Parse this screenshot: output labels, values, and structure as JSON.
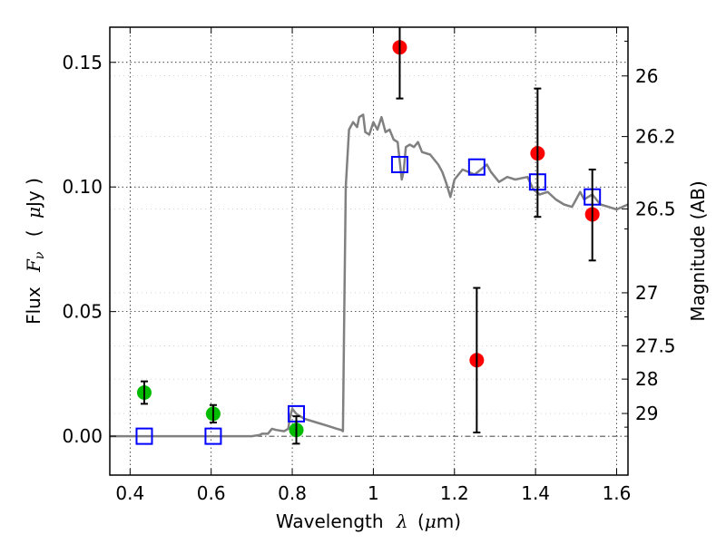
{
  "chart_data": {
    "type": "scatter",
    "title": "",
    "xlabel": "Wavelength",
    "xlabel_symbol": "λ",
    "xlabel_unit_open": "(",
    "xlabel_unit_mu": "μ",
    "xlabel_unit_rest": "m)",
    "ylabel": "Flux",
    "ylabel_symbol": "F",
    "ylabel_subscript": "ν",
    "ylabel_unit_open": "(",
    "ylabel_unit_mu": "μ",
    "ylabel_unit_rest": "Jy )",
    "y2label": "Magnitude (AB)",
    "xlim": [
      0.35,
      1.628
    ],
    "ylim": [
      -0.0156,
      0.1641
    ],
    "grid": true,
    "xticks": [
      0.4,
      0.6,
      0.8,
      1.0,
      1.2,
      1.4,
      1.6
    ],
    "xtick_labels": [
      "0.4",
      "0.6",
      "0.8",
      "1",
      "1.2",
      "1.4",
      "1.6"
    ],
    "yticks": [
      0.0,
      0.05,
      0.1,
      0.15
    ],
    "ytick_labels": [
      "0.00",
      "0.05",
      "0.10",
      "0.15"
    ],
    "y2ticks": [
      {
        "label": "26",
        "mag": 26.0
      },
      {
        "label": "26.2",
        "mag": 26.2
      },
      {
        "label": "26.5",
        "mag": 26.5
      },
      {
        "label": "27",
        "mag": 27.0
      },
      {
        "label": "27.5",
        "mag": 27.5
      },
      {
        "label": "28",
        "mag": 28.0
      },
      {
        "label": "29",
        "mag": 29.0
      }
    ],
    "y2_minor_mags": [
      25.9,
      26.3,
      26.6,
      27.2,
      30.0
    ],
    "zero_line": 0.0,
    "series": [
      {
        "name": "model_spectrum",
        "kind": "line",
        "color": "#808080",
        "x": [
          0.35,
          0.7,
          0.72,
          0.725,
          0.74,
          0.745,
          0.75,
          0.76,
          0.78,
          0.79,
          0.795,
          0.8,
          0.81,
          0.83,
          0.86,
          0.89,
          0.91,
          0.92,
          0.925,
          0.928,
          0.932,
          0.94,
          0.95,
          0.96,
          0.965,
          0.975,
          0.98,
          0.99,
          1.0,
          1.01,
          1.02,
          1.03,
          1.04,
          1.05,
          1.06,
          1.07,
          1.075,
          1.08,
          1.09,
          1.1,
          1.11,
          1.12,
          1.14,
          1.16,
          1.17,
          1.18,
          1.19,
          1.2,
          1.22,
          1.25,
          1.28,
          1.29,
          1.31,
          1.33,
          1.35,
          1.38,
          1.395,
          1.41,
          1.43,
          1.45,
          1.47,
          1.49,
          1.5,
          1.51,
          1.52,
          1.53,
          1.54,
          1.56,
          1.58,
          1.6,
          1.628
        ],
        "y": [
          0.0,
          0.0,
          0.0005,
          0.001,
          0.001,
          0.002,
          0.003,
          0.0025,
          0.002,
          0.003,
          0.008,
          0.011,
          0.009,
          0.007,
          0.0055,
          0.004,
          0.003,
          0.0025,
          0.002,
          0.045,
          0.1,
          0.123,
          0.126,
          0.124,
          0.128,
          0.129,
          0.122,
          0.121,
          0.126,
          0.123,
          0.128,
          0.122,
          0.123,
          0.119,
          0.118,
          0.103,
          0.1065,
          0.116,
          0.117,
          0.116,
          0.118,
          0.114,
          0.113,
          0.109,
          0.106,
          0.1015,
          0.096,
          0.103,
          0.107,
          0.105,
          0.109,
          0.106,
          0.102,
          0.104,
          0.103,
          0.104,
          0.099,
          0.097,
          0.098,
          0.095,
          0.093,
          0.092,
          0.095,
          0.098,
          0.095,
          0.096,
          0.097,
          0.093,
          0.092,
          0.091,
          0.093
        ]
      },
      {
        "name": "model_bandpass_flux",
        "kind": "marker",
        "marker": "open-square",
        "color": "#0000ff",
        "x": [
          0.435,
          0.605,
          0.81,
          1.065,
          1.255,
          1.405,
          1.54
        ],
        "y": [
          0.0,
          0.0,
          0.009,
          0.109,
          0.108,
          0.102,
          0.096
        ]
      },
      {
        "name": "optical_detections",
        "kind": "errorbar",
        "marker": "filled-circle",
        "color": "#00bb00",
        "x": [
          0.435,
          0.605,
          0.81
        ],
        "y": [
          0.0175,
          0.009,
          0.0025
        ],
        "yerr_low": [
          0.0045,
          0.0035,
          0.0055
        ],
        "yerr_high": [
          0.0045,
          0.0035,
          0.0055
        ]
      },
      {
        "name": "nir_measurements",
        "kind": "errorbar",
        "marker": "filled-circle",
        "color": "#ff0000",
        "x": [
          1.065,
          1.255,
          1.405,
          1.54
        ],
        "y": [
          0.156,
          0.0305,
          0.1135,
          0.089
        ],
        "yerr_low": [
          0.0205,
          0.029,
          0.0255,
          0.0185
        ],
        "yerr_high": [
          0.0205,
          0.029,
          0.026,
          0.018
        ]
      }
    ]
  }
}
